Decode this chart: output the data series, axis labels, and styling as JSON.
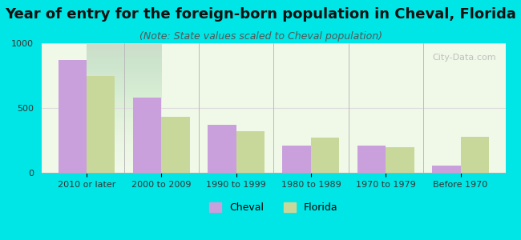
{
  "title": "Year of entry for the foreign-born population in Cheval, Florida",
  "subtitle": "(Note: State values scaled to Cheval population)",
  "categories": [
    "2010 or later",
    "2000 to 2009",
    "1990 to 1999",
    "1980 to 1989",
    "1970 to 1979",
    "Before 1970"
  ],
  "cheval_values": [
    870,
    580,
    370,
    210,
    210,
    55
  ],
  "florida_values": [
    750,
    430,
    320,
    270,
    195,
    280
  ],
  "cheval_color": "#c9a0dc",
  "florida_color": "#c8d89a",
  "background_color": "#00e5e5",
  "plot_bg_start": "#f0f8e8",
  "plot_bg_end": "#ffffff",
  "ylim": [
    0,
    1000
  ],
  "yticks": [
    0,
    500,
    1000
  ],
  "bar_width": 0.38,
  "title_fontsize": 13,
  "subtitle_fontsize": 9,
  "legend_labels": [
    "Cheval",
    "Florida"
  ],
  "watermark": "City-Data.com"
}
